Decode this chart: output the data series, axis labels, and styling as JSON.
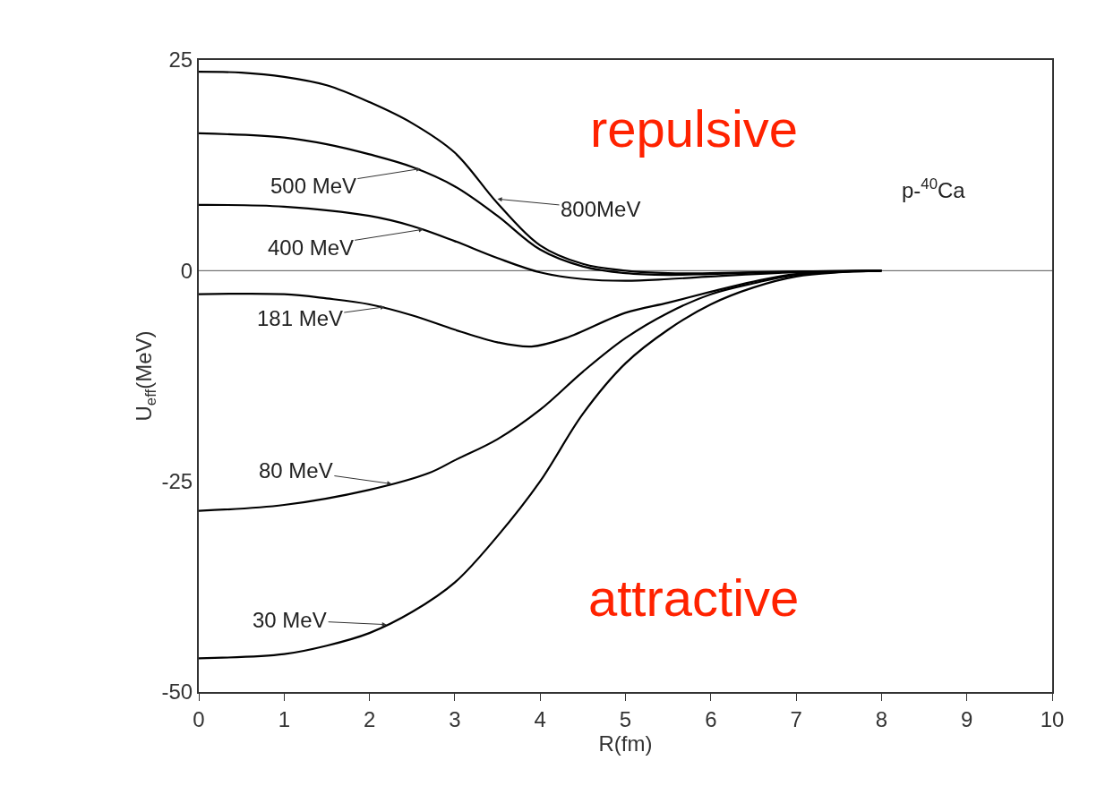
{
  "chart_data": {
    "type": "line",
    "xlabel": "R(fm)",
    "ylabel": "U$_{eff}$(MeV)",
    "xlim": [
      0,
      10
    ],
    "xticks": [
      0,
      1,
      2,
      3,
      4,
      5,
      6,
      7,
      8,
      9,
      10
    ],
    "ylim": [
      -50,
      25
    ],
    "yticks": [
      -50,
      -25,
      0,
      25
    ],
    "grid": false,
    "marker": "none",
    "line_style": "solid",
    "ref_lines": [
      {
        "axis": "y",
        "value": 0,
        "color": "#555555"
      }
    ],
    "series": [
      {
        "color": "#000000",
        "x": [
          0,
          0.5,
          1,
          1.5,
          2,
          2.5,
          3,
          3.5,
          4,
          4.5,
          5,
          5.5,
          6,
          7,
          8
        ],
        "values": [
          23.6,
          23.5,
          23,
          22,
          20,
          17.5,
          14,
          8,
          3,
          0.8,
          0,
          -0.3,
          -0.3,
          -0.1,
          0
        ]
      },
      {
        "color": "#000000",
        "x": [
          0,
          1,
          1.5,
          2,
          2.5,
          3,
          3.5,
          4,
          4.5,
          5,
          5.5,
          6,
          7,
          8
        ],
        "values": [
          16.3,
          15.8,
          15,
          13.8,
          12.3,
          10,
          6.5,
          2.5,
          0.5,
          -0.3,
          -0.5,
          -0.4,
          -0.1,
          0
        ]
      },
      {
        "color": "#000000",
        "x": [
          0,
          1,
          2,
          2.5,
          3,
          3.5,
          4,
          4.5,
          5,
          5.5,
          6,
          7,
          8
        ],
        "values": [
          7.8,
          7.6,
          6.5,
          5.3,
          3.5,
          1.5,
          -0.2,
          -1,
          -1.2,
          -1,
          -0.7,
          -0.2,
          0
        ]
      },
      {
        "color": "#000000",
        "x": [
          0,
          1,
          1.5,
          2,
          2.5,
          3,
          3.5,
          3.9,
          4.3,
          5,
          5.5,
          6,
          6.5,
          7,
          8
        ],
        "values": [
          -2.8,
          -2.8,
          -3.3,
          -4,
          -5.3,
          -7,
          -8.5,
          -9,
          -8,
          -5,
          -3.8,
          -2.5,
          -1.3,
          -0.4,
          0
        ]
      },
      {
        "color": "#000000",
        "x": [
          0,
          1,
          2,
          2.7,
          3,
          3.5,
          4,
          4.5,
          5,
          5.5,
          6,
          6.5,
          7,
          8
        ],
        "values": [
          -28.5,
          -27.8,
          -26,
          -24,
          -22.5,
          -20,
          -16.5,
          -12,
          -8,
          -5,
          -2.8,
          -1.5,
          -0.5,
          0
        ]
      },
      {
        "color": "#000000",
        "x": [
          0,
          1,
          1.5,
          2,
          2.5,
          3,
          3.5,
          4,
          4.5,
          5,
          5.5,
          6,
          6.5,
          7,
          7.5,
          8
        ],
        "values": [
          -46,
          -45.5,
          -44.5,
          -43,
          -40.5,
          -37,
          -31.5,
          -25,
          -17,
          -11,
          -7,
          -4,
          -2,
          -0.7,
          -0.2,
          0
        ]
      }
    ],
    "annotations": [
      {
        "text": "800MeV",
        "x": 3.5,
        "y": 8.5
      },
      {
        "text": "500 MeV",
        "x": 2.6,
        "y": 12.1
      },
      {
        "text": "400 MeV",
        "x": 2.63,
        "y": 4.9
      },
      {
        "text": "181 MeV",
        "x": 2.18,
        "y": -4.3
      },
      {
        "text": "80 MeV",
        "x": 2.26,
        "y": -25.3
      },
      {
        "text": "30 MeV",
        "x": 2.2,
        "y": -42
      },
      "repulsive",
      "attractive",
      "p-$^{40}$Ca"
    ]
  }
}
